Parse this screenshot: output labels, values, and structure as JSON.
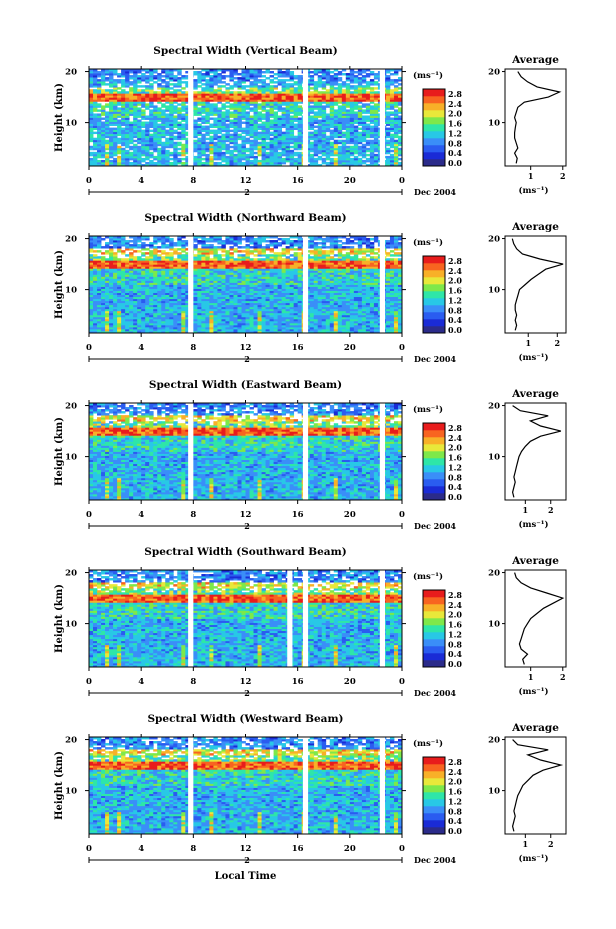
{
  "figure": {
    "xlabel": "Local Time",
    "date_label": "Dec 2004",
    "day_marker": "2"
  },
  "colorbar": {
    "unit_label": "(ms⁻¹)",
    "tick_labels": [
      "0.0",
      "0.4",
      "0.8",
      "1.2",
      "1.6",
      "2.0",
      "2.4",
      "2.8"
    ],
    "colors": [
      "#2b2b8a",
      "#1a2bd6",
      "#2a5cf0",
      "#3a8ef8",
      "#28c8e6",
      "#2ee6a8",
      "#7ee84a",
      "#e8e83a",
      "#f8b028",
      "#f86420",
      "#e81c1c"
    ]
  },
  "chart_data": [
    {
      "type": "heatmap",
      "title": "Spectral Width (Vertical Beam)",
      "ylabel": "Height (km)",
      "xlabel": "Local Time",
      "x_ticks": [
        "0",
        "4",
        "8",
        "12",
        "16",
        "20",
        "0"
      ],
      "y_ticks": [
        "10",
        "20"
      ],
      "xlim": [
        0,
        24
      ],
      "ylim": [
        1.5,
        20.5
      ],
      "gaps_hours": [
        [
          7.6,
          8.0
        ],
        [
          16.4,
          16.8
        ],
        [
          22.3,
          22.7
        ]
      ],
      "profile": {
        "title": "Average",
        "xlabel": "(ms⁻¹)",
        "x_ticks": [
          "1",
          "2"
        ],
        "xlim": [
          0.2,
          2.1
        ],
        "height_km": [
          2,
          3,
          4,
          5,
          6,
          7,
          8,
          9,
          10,
          11,
          12,
          13,
          14,
          15,
          16,
          17,
          18,
          19,
          20
        ],
        "width": [
          0.55,
          0.58,
          0.5,
          0.6,
          0.55,
          0.5,
          0.5,
          0.52,
          0.55,
          0.5,
          0.55,
          0.6,
          0.8,
          1.55,
          1.9,
          1.2,
          0.9,
          0.7,
          0.6
        ]
      }
    },
    {
      "type": "heatmap",
      "title": "Spectral Width (Northward Beam)",
      "ylabel": "Height (km)",
      "xlabel": "Local Time",
      "x_ticks": [
        "0",
        "4",
        "8",
        "12",
        "16",
        "20",
        "0"
      ],
      "y_ticks": [
        "10",
        "20"
      ],
      "xlim": [
        0,
        24
      ],
      "ylim": [
        1.5,
        20.5
      ],
      "gaps_hours": [
        [
          7.6,
          8.0
        ],
        [
          16.4,
          16.8
        ],
        [
          22.3,
          22.7
        ]
      ],
      "profile": {
        "title": "Average",
        "xlabel": "(ms⁻¹)",
        "x_ticks": [
          "1",
          "2"
        ],
        "xlim": [
          0.2,
          2.3
        ],
        "height_km": [
          2,
          3,
          4,
          5,
          6,
          7,
          8,
          9,
          10,
          11,
          12,
          13,
          14,
          15,
          16,
          17,
          18,
          19,
          20
        ],
        "width": [
          0.55,
          0.6,
          0.55,
          0.6,
          0.55,
          0.55,
          0.6,
          0.65,
          0.7,
          0.9,
          1.1,
          1.35,
          1.6,
          2.2,
          1.4,
          0.8,
          0.6,
          0.5,
          0.45
        ]
      }
    },
    {
      "type": "heatmap",
      "title": "Spectral Width (Eastward Beam)",
      "ylabel": "Height (km)",
      "xlabel": "Local Time",
      "x_ticks": [
        "0",
        "4",
        "8",
        "12",
        "16",
        "20",
        "0"
      ],
      "y_ticks": [
        "10",
        "20"
      ],
      "xlim": [
        0,
        24
      ],
      "ylim": [
        1.5,
        20.5
      ],
      "gaps_hours": [
        [
          7.6,
          8.0
        ],
        [
          16.4,
          16.8
        ],
        [
          22.3,
          22.7
        ]
      ],
      "profile": {
        "title": "Average",
        "xlabel": "(ms⁻¹)",
        "x_ticks": [
          "1",
          "2"
        ],
        "xlim": [
          0.2,
          2.6
        ],
        "height_km": [
          2,
          3,
          4,
          5,
          6,
          7,
          8,
          9,
          10,
          11,
          12,
          13,
          14,
          15,
          16,
          17,
          18,
          19,
          20
        ],
        "width": [
          0.55,
          0.5,
          0.55,
          0.6,
          0.55,
          0.6,
          0.65,
          0.7,
          0.75,
          0.85,
          1.0,
          1.2,
          1.6,
          2.4,
          1.6,
          1.2,
          1.9,
          0.8,
          0.5
        ]
      }
    },
    {
      "type": "heatmap",
      "title": "Spectral Width (Southward Beam)",
      "ylabel": "Height (km)",
      "xlabel": "Local Time",
      "x_ticks": [
        "0",
        "4",
        "8",
        "12",
        "16",
        "20",
        "0"
      ],
      "y_ticks": [
        "10",
        "20"
      ],
      "xlim": [
        0,
        24
      ],
      "ylim": [
        1.5,
        20.5
      ],
      "gaps_hours": [
        [
          7.6,
          8.0
        ],
        [
          15.2,
          15.6
        ],
        [
          16.4,
          16.8
        ],
        [
          22.3,
          22.7
        ]
      ],
      "profile": {
        "title": "Average",
        "xlabel": "(ms⁻¹)",
        "x_ticks": [
          "1",
          "2"
        ],
        "xlim": [
          0.2,
          2.1
        ],
        "height_km": [
          2,
          3,
          4,
          5,
          6,
          7,
          8,
          9,
          10,
          11,
          12,
          13,
          14,
          15,
          16,
          17,
          18,
          19,
          20
        ],
        "width": [
          0.8,
          0.75,
          0.9,
          0.7,
          0.65,
          0.7,
          0.75,
          0.8,
          0.9,
          1.0,
          1.2,
          1.4,
          1.7,
          2.0,
          1.5,
          1.0,
          0.7,
          0.55,
          0.5
        ]
      }
    },
    {
      "type": "heatmap",
      "title": "Spectral Width (Westward Beam)",
      "ylabel": "Height (km)",
      "xlabel": "Local Time",
      "x_ticks": [
        "0",
        "4",
        "8",
        "12",
        "16",
        "20",
        "0"
      ],
      "y_ticks": [
        "10",
        "20"
      ],
      "xlim": [
        0,
        24
      ],
      "ylim": [
        1.5,
        20.5
      ],
      "gaps_hours": [
        [
          7.6,
          8.0
        ],
        [
          16.4,
          16.8
        ],
        [
          22.3,
          22.7
        ]
      ],
      "profile": {
        "title": "Average",
        "xlabel": "(ms⁻¹)",
        "x_ticks": [
          "1",
          "2"
        ],
        "xlim": [
          0.2,
          2.6
        ],
        "height_km": [
          2,
          3,
          4,
          5,
          6,
          7,
          8,
          9,
          10,
          11,
          12,
          13,
          14,
          15,
          16,
          17,
          18,
          19,
          20
        ],
        "width": [
          0.55,
          0.5,
          0.55,
          0.6,
          0.55,
          0.6,
          0.65,
          0.7,
          0.8,
          0.9,
          1.1,
          1.3,
          1.7,
          2.4,
          1.6,
          1.1,
          1.9,
          0.7,
          0.5
        ]
      }
    }
  ]
}
